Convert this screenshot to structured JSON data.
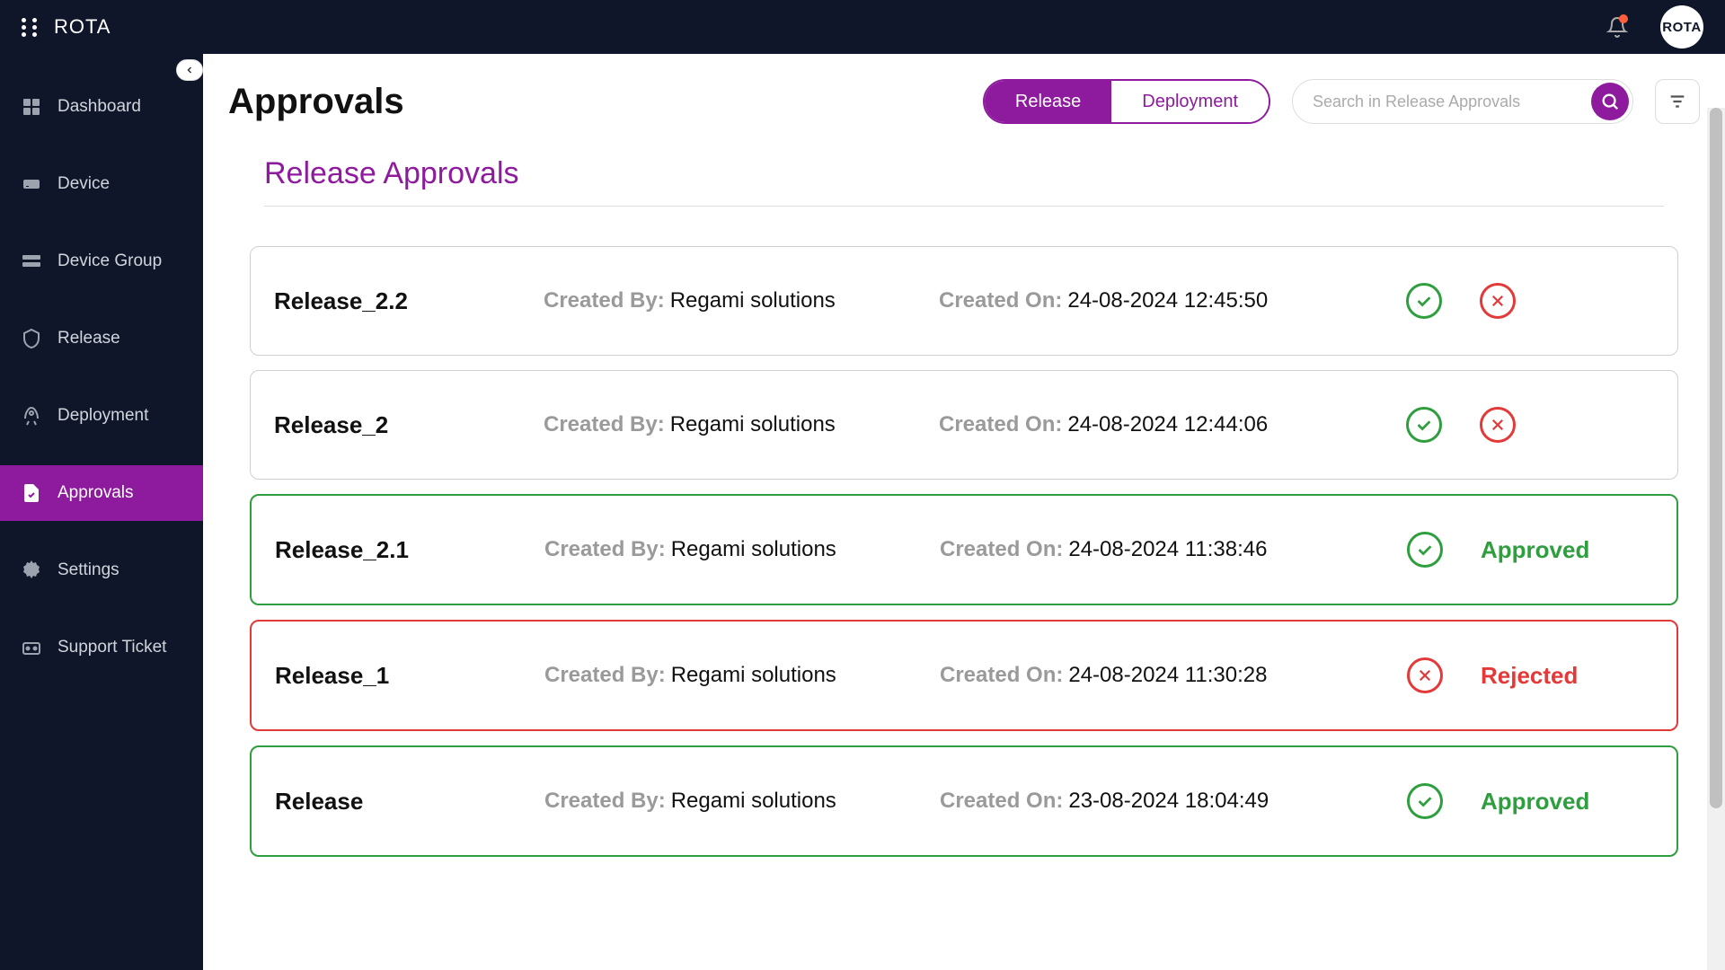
{
  "brand": "ROTA",
  "avatar_text": "ROTA",
  "sidebar": {
    "items": [
      {
        "label": "Dashboard",
        "icon": "dashboard"
      },
      {
        "label": "Device",
        "icon": "device"
      },
      {
        "label": "Device Group",
        "icon": "device-group"
      },
      {
        "label": "Release",
        "icon": "release"
      },
      {
        "label": "Deployment",
        "icon": "deployment"
      },
      {
        "label": "Approvals",
        "icon": "approvals",
        "active": true
      },
      {
        "label": "Settings",
        "icon": "settings"
      },
      {
        "label": "Support Ticket",
        "icon": "support"
      }
    ]
  },
  "page": {
    "title": "Approvals",
    "tabs": {
      "release": "Release",
      "deployment": "Deployment",
      "active": "release"
    },
    "search_placeholder": "Search in Release Approvals",
    "section_title": "Release Approvals"
  },
  "labels": {
    "created_by": "Created By:",
    "created_on": "Created On:",
    "approved": "Approved",
    "rejected": "Rejected"
  },
  "colors": {
    "accent": "#8e1a9e",
    "approve": "#2e9e3e",
    "reject": "#e33939",
    "topbar": "#0f1629"
  },
  "releases": [
    {
      "name": "Release_2.2",
      "created_by": "Regami solutions",
      "created_on": "24-08-2024 12:45:50",
      "status": "pending"
    },
    {
      "name": "Release_2",
      "created_by": "Regami solutions",
      "created_on": "24-08-2024 12:44:06",
      "status": "pending"
    },
    {
      "name": "Release_2.1",
      "created_by": "Regami solutions",
      "created_on": "24-08-2024 11:38:46",
      "status": "approved"
    },
    {
      "name": "Release_1",
      "created_by": "Regami solutions",
      "created_on": "24-08-2024 11:30:28",
      "status": "rejected"
    },
    {
      "name": "Release",
      "created_by": "Regami solutions",
      "created_on": "23-08-2024 18:04:49",
      "status": "approved"
    }
  ]
}
